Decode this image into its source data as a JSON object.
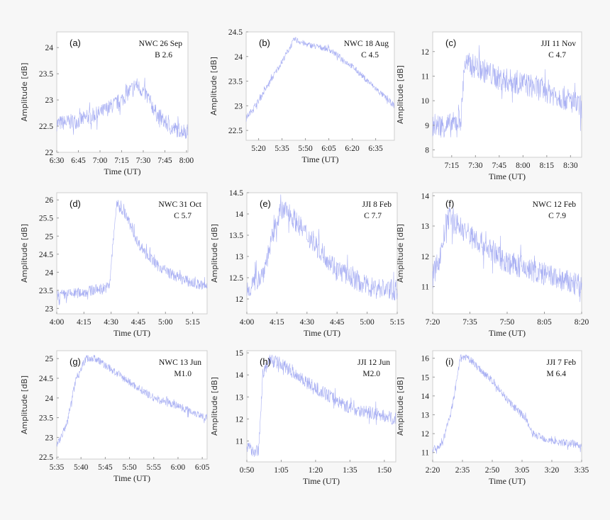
{
  "line_color": "#9fa6f2",
  "chart_data": [
    {
      "type": "line",
      "panel": "(a)",
      "annotation": [
        "NWC 26 Sep",
        "B 2.6"
      ],
      "xlabel": "Time (UT)",
      "ylabel": "Amplitude [dB]",
      "xlim": [
        "6:30",
        "8:01"
      ],
      "ylim": [
        22,
        24.3
      ],
      "xticks": [
        "6:30",
        "6:45",
        "7:00",
        "7:15",
        "7:30",
        "7:45",
        "8:00"
      ],
      "yticks": [
        22,
        22.5,
        23,
        23.5,
        24
      ],
      "noise": 0.15,
      "points": [
        [
          "6:30",
          22.55
        ],
        [
          "6:45",
          22.6
        ],
        [
          "7:00",
          22.75
        ],
        [
          "7:15",
          23.0
        ],
        [
          "7:25",
          23.3
        ],
        [
          "7:32",
          23.1
        ],
        [
          "7:40",
          22.7
        ],
        [
          "7:50",
          22.45
        ],
        [
          "8:01",
          22.4
        ]
      ]
    },
    {
      "type": "line",
      "panel": "(b)",
      "annotation": [
        "NWC 18 Aug",
        "C 4.5"
      ],
      "xlabel": "Time (UT)",
      "ylabel": "Amplitude [dB]",
      "xlim": [
        "5:12",
        "6:47"
      ],
      "ylim": [
        22.3,
        24.5
      ],
      "xticks": [
        "5:20",
        "5:35",
        "5:50",
        "6:05",
        "6:20",
        "6:35"
      ],
      "yticks": [
        22.5,
        23,
        23.5,
        24,
        24.5
      ],
      "noise": 0.06,
      "points": [
        [
          "5:12",
          22.75
        ],
        [
          "5:20",
          23.1
        ],
        [
          "5:35",
          23.9
        ],
        [
          "5:43",
          24.35
        ],
        [
          "5:50",
          24.25
        ],
        [
          "6:05",
          24.15
        ],
        [
          "6:20",
          23.8
        ],
        [
          "6:35",
          23.35
        ],
        [
          "6:47",
          23.0
        ]
      ]
    },
    {
      "type": "line",
      "panel": "(c)",
      "annotation": [
        "JJI 11 Nov",
        "C 4.7"
      ],
      "xlabel": "Time (UT)",
      "ylabel": "Amplitude [dB]",
      "xlim": [
        "7:03",
        "8:37"
      ],
      "ylim": [
        7.7,
        12.8
      ],
      "xticks": [
        "7:15",
        "7:30",
        "7:45",
        "8:00",
        "8:15",
        "8:30"
      ],
      "yticks": [
        8,
        9,
        10,
        11,
        12
      ],
      "noise": 0.5,
      "points": [
        [
          "7:03",
          9.0
        ],
        [
          "7:15",
          9.0
        ],
        [
          "7:21",
          9.3
        ],
        [
          "7:23",
          11.5
        ],
        [
          "7:30",
          11.4
        ],
        [
          "7:45",
          10.9
        ],
        [
          "8:00",
          10.7
        ],
        [
          "8:15",
          10.4
        ],
        [
          "8:30",
          10.0
        ],
        [
          "8:37",
          9.7
        ]
      ]
    },
    {
      "type": "line",
      "panel": "(d)",
      "annotation": [
        "NWC 31 Oct",
        "C 5.7"
      ],
      "xlabel": "Time (UT)",
      "ylabel": "Amplitude [dB]",
      "xlim": [
        "4:00",
        "5:23"
      ],
      "ylim": [
        22.85,
        26.2
      ],
      "xticks": [
        "4:00",
        "4:15",
        "4:30",
        "4:45",
        "5:00",
        "5:15"
      ],
      "yticks": [
        23,
        23.5,
        24,
        24.5,
        25,
        25.5,
        26
      ],
      "noise": 0.15,
      "points": [
        [
          "4:00",
          23.35
        ],
        [
          "4:15",
          23.45
        ],
        [
          "4:29",
          23.6
        ],
        [
          "4:33",
          25.9
        ],
        [
          "4:38",
          25.6
        ],
        [
          "4:45",
          24.8
        ],
        [
          "4:55",
          24.2
        ],
        [
          "5:05",
          23.9
        ],
        [
          "5:15",
          23.7
        ],
        [
          "5:23",
          23.6
        ]
      ]
    },
    {
      "type": "line",
      "panel": "(e)",
      "annotation": [
        "JJI 8 Feb",
        "C 7.7"
      ],
      "xlabel": "Time (UT)",
      "ylabel": "Amplitude [dB]",
      "xlim": [
        "4:00",
        "5:15"
      ],
      "ylim": [
        11.65,
        14.5
      ],
      "xticks": [
        "4:00",
        "4:15",
        "4:30",
        "4:45",
        "5:00",
        "5:15"
      ],
      "yticks": [
        12,
        12.5,
        13,
        13.5,
        14,
        14.5
      ],
      "noise": 0.25,
      "points": [
        [
          "4:00",
          12.2
        ],
        [
          "4:08",
          12.6
        ],
        [
          "4:16",
          14.0
        ],
        [
          "4:20",
          14.1
        ],
        [
          "4:30",
          13.5
        ],
        [
          "4:45",
          12.7
        ],
        [
          "5:00",
          12.3
        ],
        [
          "5:15",
          12.2
        ]
      ]
    },
    {
      "type": "line",
      "panel": "(f)",
      "annotation": [
        "NWC 12 Feb",
        "C 7.9"
      ],
      "xlabel": "Time (UT)",
      "ylabel": "Amplitude [dB]",
      "xlim": [
        "7:20",
        "8:20"
      ],
      "ylim": [
        10.1,
        14.1
      ],
      "xticks": [
        "7:20",
        "7:35",
        "7:50",
        "8:05",
        "8:20"
      ],
      "yticks": [
        11,
        12,
        13,
        14
      ],
      "noise": 0.4,
      "points": [
        [
          "7:20",
          11.3
        ],
        [
          "7:23",
          12.0
        ],
        [
          "7:26",
          13.3
        ],
        [
          "7:35",
          12.7
        ],
        [
          "7:50",
          11.8
        ],
        [
          "8:05",
          11.4
        ],
        [
          "8:20",
          11.0
        ]
      ]
    },
    {
      "type": "line",
      "panel": "(g)",
      "annotation": [
        "NWC 13 Jun",
        "M1.0"
      ],
      "xlabel": "Time (UT)",
      "ylabel": "Amplitude [dB]",
      "xlim": [
        "5:35",
        "6:06"
      ],
      "ylim": [
        22.45,
        25.2
      ],
      "xticks": [
        "5:35",
        "5:40",
        "5:45",
        "5:50",
        "5:55",
        "6:00",
        "6:05"
      ],
      "yticks": [
        22.5,
        23,
        23.5,
        24,
        24.5,
        25
      ],
      "noise": 0.1,
      "points": [
        [
          "5:35",
          22.8
        ],
        [
          "5:37",
          23.3
        ],
        [
          "5:39",
          24.5
        ],
        [
          "5:41",
          25.0
        ],
        [
          "5:43",
          25.0
        ],
        [
          "5:50",
          24.4
        ],
        [
          "5:55",
          24.0
        ],
        [
          "6:00",
          23.8
        ],
        [
          "6:06",
          23.5
        ]
      ]
    },
    {
      "type": "line",
      "panel": "(h)",
      "annotation": [
        "JJI 12 Jun",
        "M2.0"
      ],
      "xlabel": "Time (UT)",
      "ylabel": "Amplitude [dB]",
      "xlim": [
        "0:50",
        "1:55"
      ],
      "ylim": [
        10.05,
        15.1
      ],
      "xticks": [
        "0:50",
        "1:05",
        "1:20",
        "1:35",
        "1:50"
      ],
      "yticks": [
        11,
        12,
        13,
        14,
        15
      ],
      "noise": 0.3,
      "points": [
        [
          "0:50",
          10.7
        ],
        [
          "0:55",
          10.5
        ],
        [
          "0:57",
          14.0
        ],
        [
          "1:00",
          14.7
        ],
        [
          "1:05",
          14.5
        ],
        [
          "1:20",
          13.4
        ],
        [
          "1:35",
          12.5
        ],
        [
          "1:55",
          12.0
        ]
      ]
    },
    {
      "type": "line",
      "panel": "(i)",
      "annotation": [
        "JJI 7 Feb",
        "M 6.4"
      ],
      "xlabel": "Time (UT)",
      "ylabel": "Amplitude [dB]",
      "xlim": [
        "2:20",
        "3:35"
      ],
      "ylim": [
        10.5,
        16.4
      ],
      "xticks": [
        "2:20",
        "2:35",
        "2:50",
        "3:05",
        "3:20",
        "3:35"
      ],
      "yticks": [
        11,
        12,
        13,
        14,
        15,
        16
      ],
      "noise": 0.2,
      "points": [
        [
          "2:20",
          11.1
        ],
        [
          "2:25",
          11.5
        ],
        [
          "2:30",
          13.5
        ],
        [
          "2:34",
          16.0
        ],
        [
          "2:38",
          16.0
        ],
        [
          "2:50",
          14.8
        ],
        [
          "3:00",
          13.5
        ],
        [
          "3:07",
          12.8
        ],
        [
          "3:10",
          12.0
        ],
        [
          "3:20",
          11.6
        ],
        [
          "3:35",
          11.4
        ]
      ]
    }
  ]
}
